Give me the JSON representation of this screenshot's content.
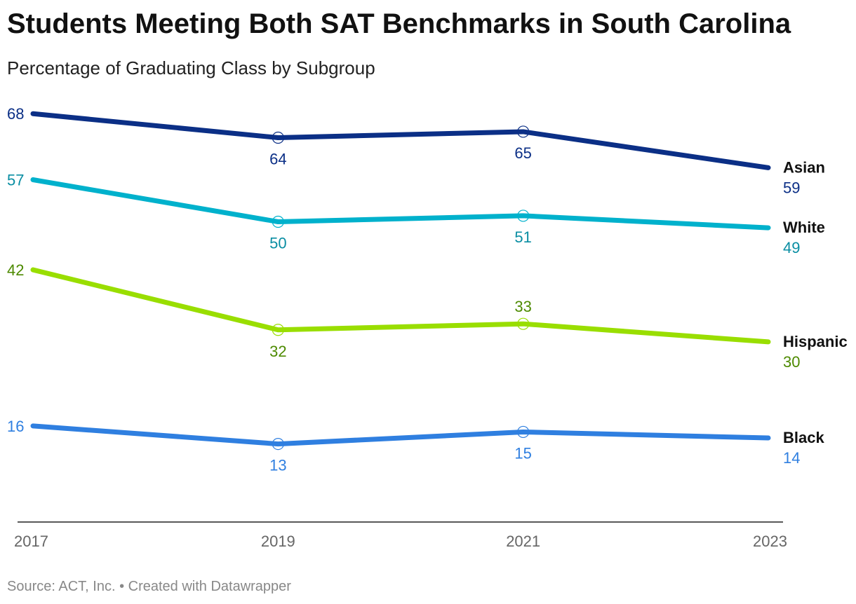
{
  "header": {
    "title": "Students Meeting Both SAT Benchmarks in South Carolina",
    "subtitle": "Percentage of Graduating Class by Subgroup"
  },
  "footer": {
    "source": "Source: ACT, Inc. • Created with Datawrapper"
  },
  "chart_data": {
    "type": "line",
    "title": "Students Meeting Both SAT Benchmarks in South Carolina",
    "subtitle": "Percentage of Graduating Class by Subgroup",
    "x": [
      "2017",
      "2019",
      "2021",
      "2023"
    ],
    "xlabel": "",
    "ylabel": "",
    "grid": false,
    "legend": "direct labels at right end of lines",
    "series": [
      {
        "name": "Asian",
        "values": [
          68,
          64,
          65,
          59
        ],
        "color": "#0b2f86",
        "label_color": "#0b2f86"
      },
      {
        "name": "White",
        "values": [
          57,
          50,
          51,
          49
        ],
        "color": "#00b1cc",
        "label_color": "#0a8ea3"
      },
      {
        "name": "Hispanic",
        "values": [
          42,
          32,
          33,
          30
        ],
        "color": "#99de00",
        "label_color": "#4d8a00"
      },
      {
        "name": "Black",
        "values": [
          16,
          13,
          15,
          14
        ],
        "color": "#2f7fe0",
        "label_color": "#2f7fe0"
      }
    ]
  }
}
